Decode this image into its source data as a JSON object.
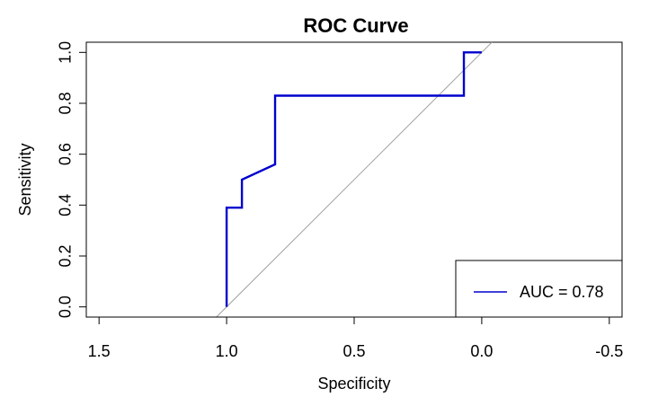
{
  "chart_data": {
    "type": "line",
    "title": "ROC Curve",
    "xlabel": "Specificity",
    "ylabel": "Sensitivity",
    "xlim": [
      1.55,
      -0.55
    ],
    "ylim": [
      -0.04,
      1.04
    ],
    "x_reversed": true,
    "x_ticks": [
      1.5,
      1.0,
      0.5,
      0.0,
      -0.5
    ],
    "x_tick_labels": [
      "1.5",
      "1.0",
      "0.5",
      "0.0",
      "-0.5"
    ],
    "y_ticks": [
      0.0,
      0.2,
      0.4,
      0.6,
      0.8,
      1.0
    ],
    "y_tick_labels": [
      "0.0",
      "0.2",
      "0.4",
      "0.6",
      "0.8",
      "1.0"
    ],
    "grid": false,
    "series": [
      {
        "name": "AUC = 0.78",
        "color": "#0000CD",
        "x": [
          1.0,
          1.0,
          0.94,
          0.94,
          0.81,
          0.81,
          0.07,
          0.07,
          0.0
        ],
        "y": [
          0.0,
          0.39,
          0.39,
          0.5,
          0.56,
          0.83,
          0.83,
          1.0,
          1.0
        ]
      }
    ],
    "reference_line": {
      "color": "#A0A0A0",
      "x": [
        1.04,
        -0.04
      ],
      "y": [
        -0.04,
        1.04
      ]
    },
    "legend": {
      "placement": "bottom-right",
      "entries": [
        "AUC = 0.78"
      ]
    }
  }
}
